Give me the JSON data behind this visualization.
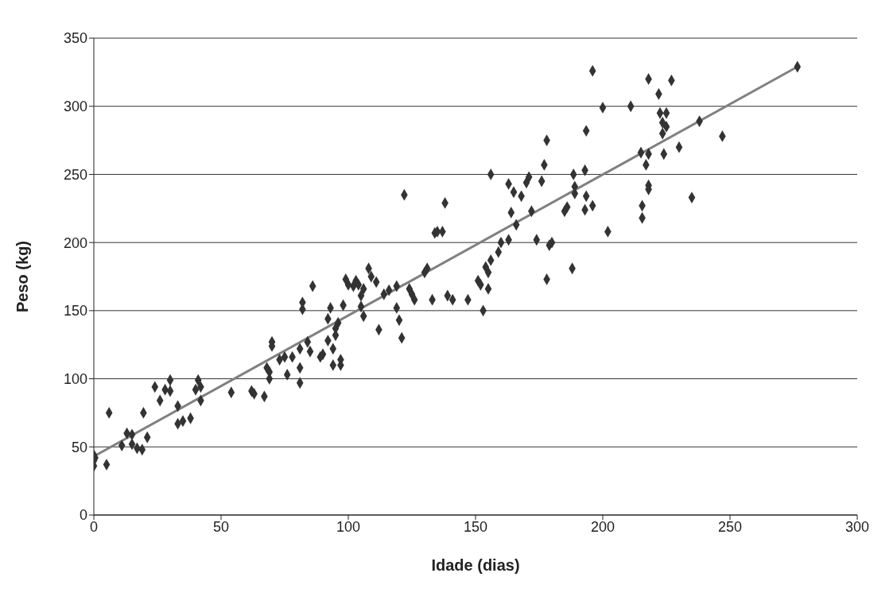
{
  "chart_data": {
    "type": "scatter",
    "xlabel": "Idade (dias)",
    "ylabel": "Peso (kg)",
    "xlim": [
      0,
      300
    ],
    "xticks": [
      0,
      50,
      100,
      150,
      200,
      250,
      300
    ],
    "ylim": [
      0,
      350
    ],
    "yticks": [
      0,
      50,
      100,
      150,
      200,
      250,
      300,
      350
    ],
    "grid": "y",
    "marker": "diamond",
    "series": [
      {
        "color": "#333333",
        "x": [
          0,
          0,
          0,
          0.5,
          5,
          6,
          11,
          13,
          15,
          15,
          17,
          19,
          19.5,
          21,
          24,
          26,
          28,
          30,
          30,
          33,
          33,
          35,
          38,
          40,
          41,
          42,
          42,
          54,
          62,
          63,
          67,
          68,
          69,
          69,
          70,
          70,
          73,
          75,
          76,
          78,
          81,
          81,
          81,
          82,
          82,
          84,
          85,
          86,
          89,
          90,
          92,
          92,
          93,
          94,
          94,
          95,
          95,
          96,
          97,
          97,
          98,
          99,
          100,
          102,
          103,
          104,
          105,
          105,
          106,
          106,
          108,
          109,
          111,
          112,
          114,
          116,
          119,
          119,
          120,
          121,
          122,
          124,
          125,
          126,
          130,
          131,
          133,
          134,
          135,
          137,
          138,
          139,
          141,
          147,
          151,
          152,
          153,
          154,
          155,
          155,
          156,
          156,
          159,
          160,
          163,
          163,
          164,
          165,
          166,
          168,
          170,
          171,
          172,
          174,
          176,
          177,
          178,
          178,
          179,
          180,
          185,
          186,
          188,
          188.5,
          189,
          189,
          193,
          193,
          193.5,
          193.5,
          196,
          196,
          200,
          202,
          211,
          215,
          215.5,
          215.5,
          217,
          218,
          218,
          218,
          218,
          222,
          222.5,
          223.5,
          223.5,
          224,
          225,
          225,
          227,
          230,
          235,
          238,
          247,
          276.5
        ],
        "values": [
          44,
          40,
          36,
          42,
          37,
          75,
          51,
          60,
          59,
          52,
          49,
          48,
          75,
          57,
          94,
          84,
          92,
          91,
          99,
          80,
          67,
          69,
          71,
          92,
          99,
          94,
          84,
          90,
          91,
          89,
          87,
          108,
          105,
          100,
          127,
          124,
          114,
          116,
          103,
          116,
          122,
          97,
          108,
          156,
          151,
          127,
          120,
          168,
          116,
          118,
          128,
          144,
          152,
          110,
          122,
          137,
          132,
          141,
          110,
          114,
          154,
          173,
          169,
          168,
          172,
          169,
          161,
          153,
          146,
          166,
          181,
          175,
          171,
          136,
          162,
          165,
          168,
          152,
          143,
          130,
          235,
          166,
          162,
          158,
          178,
          181,
          158,
          207,
          208,
          208,
          229,
          161,
          158,
          158,
          172,
          169,
          150,
          182,
          178,
          166,
          187,
          250,
          193,
          200,
          243,
          202,
          222,
          237,
          213,
          234,
          244,
          248,
          223,
          202,
          245,
          257,
          173,
          275,
          198,
          200,
          223,
          226,
          181,
          250,
          241,
          236,
          253,
          224,
          234,
          282,
          326,
          227,
          299,
          208,
          300,
          266,
          227,
          218,
          257,
          265,
          242,
          239,
          320,
          309,
          295,
          288,
          280,
          265,
          295,
          285,
          319,
          270,
          233,
          289,
          278,
          329
        ]
      },
      {
        "type": "line",
        "color": "#808080",
        "line_style": "solid",
        "marker": "none",
        "x": [
          0,
          276.5
        ],
        "values": [
          43,
          329
        ]
      }
    ]
  }
}
